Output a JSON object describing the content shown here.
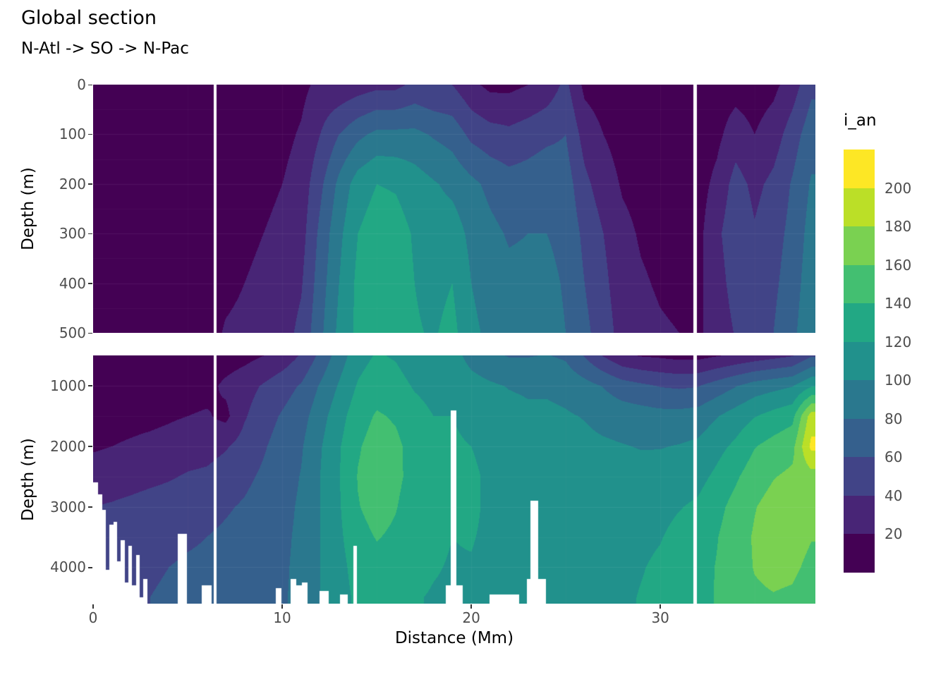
{
  "title": "Global section",
  "subtitle": "N-Atl -> SO -> N-Pac",
  "x_axis": {
    "label": "Distance (Mm)",
    "ticks": [
      0,
      10,
      20,
      30
    ],
    "range": [
      0,
      38.2
    ]
  },
  "y_axis": {
    "label": "Depth (m)",
    "top_panel_ticks": [
      0,
      100,
      200,
      300,
      400,
      500
    ],
    "bottom_panel_ticks": [
      1000,
      2000,
      3000,
      4000
    ]
  },
  "legend": {
    "title": "i_an",
    "bin_size": 20,
    "boundary_labels": [
      20,
      40,
      60,
      80,
      100,
      120,
      140,
      160,
      180,
      200
    ],
    "colors": [
      "#440154",
      "#482576",
      "#414487",
      "#35608d",
      "#2a788e",
      "#21918c",
      "#22a884",
      "#43bf71",
      "#7ad151",
      "#bbdf27",
      "#fde725"
    ]
  },
  "chart_data": {
    "type": "heatmap",
    "title": "Global section",
    "subtitle": "N-Atl -> SO -> N-Pac",
    "variable": "i_an",
    "xlabel": "Distance (Mm)",
    "ylabel": "Depth (m)",
    "x_range": [
      0,
      38.2
    ],
    "x_values": [
      0,
      1,
      2,
      3,
      4,
      5,
      6,
      7,
      8,
      9,
      10,
      11,
      12,
      13,
      14,
      15,
      16,
      17,
      18,
      19,
      20,
      21,
      22,
      23,
      24,
      25,
      26,
      27,
      28,
      29,
      30,
      31,
      32,
      33,
      34,
      35,
      36,
      37,
      38
    ],
    "section_gaps": [
      [
        6.35,
        6.52
      ],
      [
        31.75,
        31.93
      ]
    ],
    "panels": [
      {
        "name": "upper",
        "depth_range": [
          0,
          500
        ],
        "depth_levels": [
          0,
          100,
          200,
          300,
          400,
          500
        ],
        "grid": [
          [
            8,
            8,
            8,
            9,
            10,
            10
          ],
          [
            8,
            8,
            8,
            9,
            10,
            10
          ],
          [
            8,
            8,
            8,
            9,
            10,
            10
          ],
          [
            8,
            8,
            9,
            9,
            10,
            11
          ],
          [
            8,
            8,
            9,
            10,
            10,
            11
          ],
          [
            8,
            8,
            9,
            10,
            11,
            12
          ],
          [
            8,
            9,
            9,
            10,
            11,
            12
          ],
          [
            8,
            8,
            10,
            12,
            15,
            22
          ],
          [
            8,
            10,
            12,
            15,
            20,
            25
          ],
          [
            10,
            12,
            15,
            20,
            25,
            28
          ],
          [
            12,
            15,
            20,
            25,
            28,
            32
          ],
          [
            15,
            22,
            28,
            32,
            38,
            45
          ],
          [
            25,
            40,
            55,
            65,
            70,
            75
          ],
          [
            25,
            60,
            85,
            95,
            100,
            105
          ],
          [
            30,
            75,
            110,
            120,
            125,
            125
          ],
          [
            35,
            85,
            120,
            130,
            132,
            132
          ],
          [
            35,
            85,
            118,
            128,
            130,
            130
          ],
          [
            45,
            85,
            110,
            118,
            120,
            122
          ],
          [
            40,
            78,
            102,
            110,
            114,
            118
          ],
          [
            40,
            72,
            95,
            110,
            120,
            126
          ],
          [
            25,
            55,
            85,
            95,
            100,
            105
          ],
          [
            15,
            48,
            75,
            85,
            90,
            95
          ],
          [
            15,
            45,
            68,
            78,
            85,
            90
          ],
          [
            20,
            50,
            70,
            80,
            85,
            88
          ],
          [
            28,
            55,
            75,
            80,
            85,
            88
          ],
          [
            45,
            60,
            70,
            75,
            78,
            80
          ],
          [
            15,
            32,
            45,
            55,
            60,
            65
          ],
          [
            10,
            20,
            30,
            40,
            45,
            50
          ],
          [
            8,
            12,
            18,
            25,
            28,
            32
          ],
          [
            8,
            10,
            14,
            18,
            22,
            26
          ],
          [
            8,
            10,
            12,
            15,
            18,
            22
          ],
          [
            8,
            10,
            12,
            14,
            16,
            20
          ],
          [
            8,
            10,
            12,
            14,
            16,
            18
          ],
          [
            10,
            15,
            25,
            35,
            30,
            25
          ],
          [
            12,
            30,
            48,
            55,
            50,
            42
          ],
          [
            10,
            20,
            35,
            42,
            46,
            50
          ],
          [
            15,
            30,
            45,
            52,
            56,
            60
          ],
          [
            30,
            50,
            62,
            66,
            70,
            75
          ],
          [
            55,
            72,
            82,
            88,
            92,
            96
          ]
        ]
      },
      {
        "name": "lower",
        "depth_range": [
          500,
          4600
        ],
        "depth_levels": [
          500,
          1000,
          1500,
          2000,
          2500,
          3000,
          3500,
          4000,
          4500
        ],
        "grid": [
          [
            8,
            10,
            14,
            18,
            28,
            40,
            48,
            52,
            55
          ],
          [
            8,
            10,
            14,
            20,
            30,
            42,
            50,
            54,
            56
          ],
          [
            8,
            10,
            15,
            22,
            32,
            45,
            52,
            56,
            58
          ],
          [
            8,
            11,
            16,
            24,
            35,
            48,
            55,
            58,
            60
          ],
          [
            8,
            12,
            18,
            26,
            38,
            50,
            56,
            60,
            62
          ],
          [
            9,
            13,
            20,
            30,
            42,
            52,
            58,
            62,
            64
          ],
          [
            9,
            14,
            22,
            32,
            44,
            54,
            60,
            63,
            65
          ],
          [
            10,
            24,
            15,
            38,
            50,
            58,
            63,
            66,
            68
          ],
          [
            14,
            32,
            38,
            48,
            56,
            62,
            66,
            69,
            70
          ],
          [
            20,
            42,
            52,
            58,
            63,
            68,
            70,
            72,
            73
          ],
          [
            28,
            52,
            62,
            68,
            71,
            74,
            76,
            77,
            78
          ],
          [
            42,
            62,
            72,
            78,
            81,
            83,
            84,
            85,
            85
          ],
          [
            65,
            82,
            92,
            98,
            100,
            100,
            100,
            100,
            100
          ],
          [
            90,
            102,
            112,
            118,
            119,
            118,
            116,
            113,
            111
          ],
          [
            112,
            122,
            132,
            138,
            141,
            139,
            134,
            129,
            125
          ],
          [
            122,
            132,
            142,
            148,
            150,
            147,
            141,
            135,
            130
          ],
          [
            118,
            128,
            138,
            144,
            144,
            141,
            137,
            132,
            128
          ],
          [
            108,
            118,
            128,
            133,
            134,
            131,
            128,
            124,
            121
          ],
          [
            103,
            113,
            120,
            125,
            127,
            125,
            123,
            121,
            119
          ],
          [
            108,
            116,
            120,
            122,
            122,
            121,
            120,
            119,
            118
          ],
          [
            93,
            108,
            116,
            120,
            123,
            123,
            121,
            119,
            118
          ],
          [
            84,
            103,
            110,
            115,
            117,
            117,
            117,
            116,
            115
          ],
          [
            79,
            99,
            107,
            111,
            113,
            114,
            114,
            114,
            113
          ],
          [
            79,
            97,
            104,
            109,
            111,
            113,
            113,
            113,
            113
          ],
          [
            81,
            97,
            104,
            109,
            111,
            112,
            113,
            113,
            113
          ],
          [
            77,
            94,
            102,
            107,
            109,
            111,
            112,
            112,
            112
          ],
          [
            59,
            87,
            99,
            105,
            109,
            111,
            112,
            113,
            113
          ],
          [
            39,
            79,
            94,
            103,
            107,
            111,
            113,
            114,
            114
          ],
          [
            24,
            69,
            91,
            101,
            107,
            111,
            114,
            116,
            117
          ],
          [
            19,
            64,
            89,
            99,
            107,
            112,
            116,
            119,
            121
          ],
          [
            17,
            59,
            87,
            99,
            109,
            115,
            119,
            123,
            125
          ],
          [
            14,
            57,
            87,
            101,
            111,
            119,
            125,
            129,
            131
          ],
          [
            14,
            59,
            89,
            104,
            114,
            123,
            129,
            133,
            135
          ],
          [
            19,
            69,
            99,
            114,
            124,
            134,
            139,
            141,
            141
          ],
          [
            24,
            79,
            109,
            124,
            137,
            147,
            151,
            151,
            149
          ],
          [
            29,
            89,
            119,
            139,
            151,
            159,
            162,
            161,
            157
          ],
          [
            34,
            94,
            127,
            147,
            159,
            167,
            169,
            165,
            159
          ],
          [
            39,
            99,
            134,
            154,
            164,
            169,
            169,
            164,
            157
          ],
          [
            58,
            118,
            190,
            205,
            172,
            166,
            161,
            155,
            149
          ]
        ],
        "bathymetry_steps": [
          [
            0,
            2600
          ],
          [
            0.25,
            2800
          ],
          [
            0.45,
            3050
          ],
          [
            0.65,
            4050
          ],
          [
            0.85,
            3300
          ],
          [
            1.05,
            3250
          ],
          [
            1.25,
            3900
          ],
          [
            1.45,
            3550
          ],
          [
            1.65,
            4250
          ],
          [
            1.85,
            3650
          ],
          [
            2.05,
            4300
          ],
          [
            2.25,
            3800
          ],
          [
            2.45,
            4500
          ],
          [
            2.65,
            4200
          ],
          [
            2.85,
            4600
          ],
          [
            4.45,
            3450
          ],
          [
            4.95,
            4600
          ],
          [
            5.75,
            4300
          ],
          [
            6.25,
            4600
          ],
          [
            9.65,
            4350
          ],
          [
            9.95,
            4600
          ],
          [
            10.45,
            4200
          ],
          [
            10.75,
            4300
          ],
          [
            11.05,
            4250
          ],
          [
            11.35,
            4600
          ],
          [
            11.95,
            4400
          ],
          [
            12.45,
            4600
          ],
          [
            13.05,
            4450
          ],
          [
            13.45,
            4600
          ],
          [
            13.75,
            3650
          ],
          [
            13.95,
            4600
          ],
          [
            18.65,
            4300
          ],
          [
            18.9,
            1400
          ],
          [
            19.2,
            4300
          ],
          [
            19.55,
            4600
          ],
          [
            20.95,
            4450
          ],
          [
            22.55,
            4600
          ],
          [
            22.95,
            4200
          ],
          [
            23.15,
            2900
          ],
          [
            23.55,
            4200
          ],
          [
            23.95,
            4600
          ]
        ]
      }
    ]
  }
}
